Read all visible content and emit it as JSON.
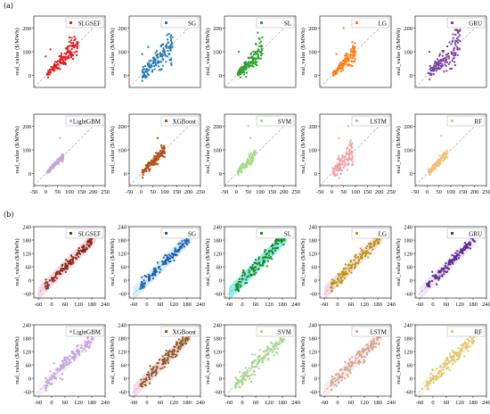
{
  "panel_labels": {
    "a": "(a)",
    "b": "(b)"
  },
  "chart_data": [
    {
      "group": "a",
      "type": "scatter",
      "ylabel": "real_value ($/MWh)",
      "xlim": [
        -50,
        250
      ],
      "ylim": [
        -50,
        250
      ],
      "x_ticks": [
        "-50",
        "0",
        "50",
        "100",
        "150",
        "200",
        "250"
      ],
      "y_ticks": [
        "200",
        "100",
        "0"
      ],
      "x_ticks_shown_on_row": 2,
      "diagonal": true,
      "grid": false,
      "legend_position": "top-right",
      "panels": [
        {
          "name": "SLGSEF",
          "color": "#e41a1c",
          "spread": 0.55,
          "xmax": 135,
          "outliers": [
            [
              0,
              80
            ],
            [
              20,
              110
            ],
            [
              100,
              160
            ]
          ]
        },
        {
          "name": "SG",
          "color": "#1f77b4",
          "spread": 0.7,
          "xmax": 135,
          "outliers": [
            [
              5,
              90
            ],
            [
              30,
              120
            ],
            [
              110,
              170
            ]
          ]
        },
        {
          "name": "SL",
          "color": "#2ca02c",
          "spread": 0.65,
          "xmax": 110,
          "outliers": [
            [
              10,
              100
            ],
            [
              90,
              180
            ]
          ]
        },
        {
          "name": "LG",
          "color": "#ff7f0e",
          "spread": 0.55,
          "xmax": 100,
          "outliers": [
            [
              50,
              200
            ],
            [
              20,
              90
            ]
          ]
        },
        {
          "name": "GRU",
          "color": "#7b3fa1",
          "spread": 0.8,
          "xmax": 140,
          "outliers": [
            [
              10,
              100
            ],
            [
              130,
              180
            ]
          ]
        },
        {
          "name": "LightGBM",
          "color": "#c3a6d8",
          "spread": 0.25,
          "xmax": 75,
          "outliers": [
            [
              60,
              150
            ]
          ]
        },
        {
          "name": "XGBoost",
          "color": "#b5521b",
          "spread": 0.4,
          "xmax": 100,
          "outliers": [
            [
              70,
              150
            ]
          ]
        },
        {
          "name": "SVM",
          "color": "#a6dc8c",
          "spread": 0.45,
          "xmax": 80,
          "outliers": [
            [
              50,
              200
            ],
            [
              60,
              150
            ]
          ]
        },
        {
          "name": "LSTM",
          "color": "#f4a3a3",
          "spread": 0.95,
          "xmax": 90,
          "outliers": [
            [
              30,
              150
            ],
            [
              70,
              200
            ]
          ]
        },
        {
          "name": "RF",
          "color": "#f2c27a",
          "spread": 0.35,
          "xmax": 85,
          "outliers": [
            [
              60,
              160
            ]
          ]
        }
      ]
    },
    {
      "group": "b",
      "type": "scatter",
      "ylabel": "real_value ($/MWh)",
      "xlim": [
        -80,
        240
      ],
      "ylim": [
        -80,
        240
      ],
      "x_ticks": [
        "-60",
        "0",
        "60",
        "120",
        "180",
        "240"
      ],
      "y_ticks": [
        "240",
        "180",
        "120",
        "60",
        "0",
        "-60"
      ],
      "diagonal": true,
      "grid": false,
      "legend_position": "top-right",
      "panels": [
        {
          "name": "SLGSEF",
          "color": "#8b2a14",
          "shade": "#f6b6d6",
          "spread": 0.35
        },
        {
          "name": "SG",
          "color": "#1f5fb0",
          "shade": "#aee4f2",
          "spread": 0.35
        },
        {
          "name": "SL",
          "color": "#1a8a1a",
          "shade": "#2ee0e0",
          "spread": 0.5
        },
        {
          "name": "LG",
          "color": "#b59a00",
          "shade": "#f6b6d6",
          "spread": 0.4
        },
        {
          "name": "GRU",
          "color": "#5b2a92",
          "shade": "#e6d4f2",
          "spread": 0.35
        },
        {
          "name": "LightGBM",
          "color": "#c3a6d8",
          "shade": "#f4e6f4",
          "spread": 0.45
        },
        {
          "name": "XGBoost",
          "color": "#8a5a1a",
          "shade": "#f6b6d6",
          "spread": 0.45
        },
        {
          "name": "SVM",
          "color": "#a6d68c",
          "shade": "#f4f4f4",
          "spread": 0.55
        },
        {
          "name": "LSTM",
          "color": "#d7a48f",
          "shade": "#f4dada",
          "spread": 0.55
        },
        {
          "name": "RF",
          "color": "#e0c86a",
          "shade": "#f4f0dc",
          "spread": 0.45
        }
      ]
    }
  ]
}
